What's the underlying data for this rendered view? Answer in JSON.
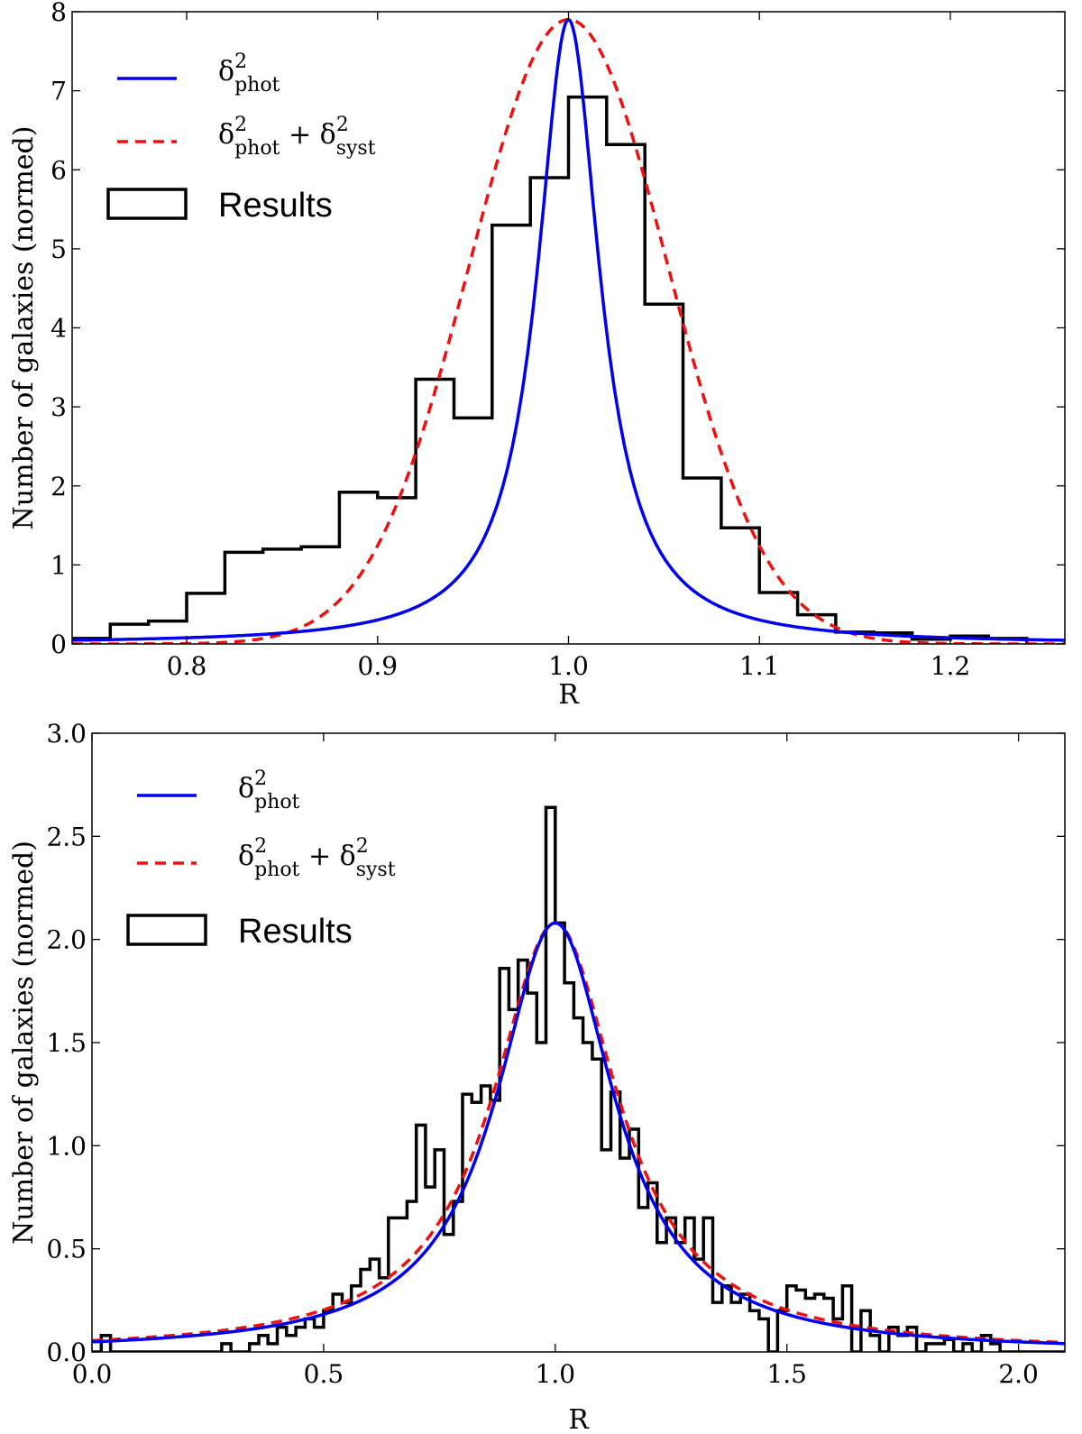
{
  "chart_data": [
    {
      "type": "line",
      "xlabel": "R",
      "ylabel": "Number of galaxies (normed)",
      "xlim": [
        0.74,
        1.26
      ],
      "ylim": [
        0,
        8
      ],
      "xticks": [
        "0.8",
        "0.9",
        "1.0",
        "1.1",
        "1.2"
      ],
      "xtick_values": [
        0.8,
        0.9,
        1.0,
        1.1,
        1.2
      ],
      "yticks": [
        "0",
        "1",
        "2",
        "3",
        "4",
        "5",
        "6",
        "7",
        "8"
      ],
      "ytick_values": [
        0,
        1,
        2,
        3,
        4,
        5,
        6,
        7,
        8
      ],
      "grid": false,
      "legend_position": "top-left",
      "series": [
        {
          "name": "δ²phot",
          "legend": {
            "sym": "δ",
            "sup": "2",
            "sub": "phot"
          },
          "kind": "curve",
          "color": "#0000ee",
          "style": "solid",
          "model": {
            "shape": "lorentzian",
            "center": 1.0,
            "gamma": 0.02,
            "peak": 7.9
          }
        },
        {
          "name": "δ²phot + δ²syst",
          "legend": {
            "sym": "δ",
            "sup": "2",
            "sub": "phot",
            "plus": "+",
            "sym2": "δ",
            "sup2": "2",
            "sub2": "syst"
          },
          "kind": "curve",
          "color": "#ee1111",
          "style": "dashed",
          "model": {
            "shape": "gaussian",
            "center": 1.0,
            "sigma": 0.052,
            "peak": 7.9
          }
        },
        {
          "name": "Results",
          "kind": "histogram",
          "color": "#000000",
          "bin_edges": [
            0.74,
            0.76,
            0.78,
            0.8,
            0.82,
            0.84,
            0.86,
            0.88,
            0.9,
            0.92,
            0.94,
            0.96,
            0.98,
            1.0,
            1.02,
            1.04,
            1.06,
            1.08,
            1.1,
            1.12,
            1.14,
            1.16,
            1.18,
            1.2,
            1.22,
            1.24
          ],
          "values": [
            0.07,
            0.25,
            0.29,
            0.64,
            1.16,
            1.2,
            1.23,
            1.92,
            1.85,
            3.35,
            2.86,
            5.3,
            5.9,
            6.92,
            6.32,
            4.3,
            2.1,
            1.47,
            0.65,
            0.37,
            0.15,
            0.14,
            0.06,
            0.1,
            0.07
          ]
        }
      ]
    },
    {
      "type": "line",
      "xlabel": "R",
      "ylabel": "Number of galaxies (normed)",
      "xlim": [
        0.0,
        2.1
      ],
      "ylim": [
        0,
        3.0
      ],
      "xticks": [
        "0.0",
        "0.5",
        "1.0",
        "1.5",
        "2.0"
      ],
      "xtick_values": [
        0.0,
        0.5,
        1.0,
        1.5,
        2.0
      ],
      "yticks": [
        "0.0",
        "0.5",
        "1.0",
        "1.5",
        "2.0",
        "2.5",
        "3.0"
      ],
      "ytick_values": [
        0.0,
        0.5,
        1.0,
        1.5,
        2.0,
        2.5,
        3.0
      ],
      "grid": false,
      "legend_position": "top-left",
      "series": [
        {
          "name": "δ²phot",
          "legend": {
            "sym": "δ",
            "sup": "2",
            "sub": "phot"
          },
          "kind": "curve",
          "color": "#0000ee",
          "style": "solid",
          "model": {
            "shape": "lorentzian",
            "center": 1.0,
            "gamma": 0.155,
            "peak": 2.08
          }
        },
        {
          "name": "δ²phot + δ²syst",
          "legend": {
            "sym": "δ",
            "sup": "2",
            "sub": "phot",
            "plus": "+",
            "sym2": "δ",
            "sup2": "2",
            "sub2": "syst"
          },
          "kind": "curve",
          "color": "#ee1111",
          "style": "dashed",
          "model": {
            "shape": "lorentzian",
            "center": 1.0,
            "gamma": 0.165,
            "peak": 2.08
          }
        },
        {
          "name": "Results",
          "kind": "histogram",
          "color": "#000000",
          "bin_edges": [
            0.0,
            0.02,
            0.04,
            0.06,
            0.08,
            0.1,
            0.12,
            0.14,
            0.16,
            0.18,
            0.2,
            0.22,
            0.24,
            0.26,
            0.28,
            0.3,
            0.32,
            0.34,
            0.36,
            0.38,
            0.4,
            0.42,
            0.44,
            0.46,
            0.48,
            0.5,
            0.52,
            0.54,
            0.56,
            0.58,
            0.6,
            0.62,
            0.64,
            0.66,
            0.68,
            0.7,
            0.72,
            0.74,
            0.76,
            0.78,
            0.8,
            0.82,
            0.84,
            0.86,
            0.88,
            0.9,
            0.92,
            0.94,
            0.96,
            0.98,
            1.0,
            1.02,
            1.04,
            1.06,
            1.08,
            1.1,
            1.12,
            1.14,
            1.16,
            1.18,
            1.2,
            1.22,
            1.24,
            1.26,
            1.28,
            1.3,
            1.32,
            1.34,
            1.36,
            1.38,
            1.4,
            1.42,
            1.44,
            1.46,
            1.48,
            1.5,
            1.52,
            1.54,
            1.56,
            1.58,
            1.6,
            1.62,
            1.64,
            1.66,
            1.68,
            1.7,
            1.72,
            1.74,
            1.76,
            1.78,
            1.8,
            1.82,
            1.84,
            1.86,
            1.88,
            1.9,
            1.92,
            1.94,
            1.96,
            1.98,
            2.0,
            2.02,
            2.04,
            2.06,
            2.08,
            2.1
          ],
          "values": [
            0.0,
            0.08,
            0.0,
            0.0,
            0.0,
            0.0,
            0.0,
            0.0,
            0.0,
            0.0,
            0.0,
            0.0,
            0.0,
            0.0,
            0.04,
            0.0,
            0.0,
            0.04,
            0.08,
            0.04,
            0.12,
            0.08,
            0.12,
            0.16,
            0.12,
            0.2,
            0.28,
            0.24,
            0.32,
            0.4,
            0.45,
            0.36,
            0.65,
            0.65,
            0.73,
            1.1,
            0.8,
            0.98,
            0.57,
            0.73,
            1.25,
            1.21,
            1.29,
            1.22,
            1.86,
            1.66,
            1.9,
            1.74,
            1.5,
            2.64,
            2.08,
            1.79,
            1.62,
            1.5,
            1.42,
            0.98,
            1.26,
            0.94,
            1.08,
            0.7,
            0.82,
            0.53,
            0.65,
            0.53,
            0.65,
            0.45,
            0.65,
            0.24,
            0.32,
            0.24,
            0.28,
            0.2,
            0.16,
            0.0,
            0.2,
            0.32,
            0.3,
            0.26,
            0.28,
            0.26,
            0.16,
            0.32,
            0.0,
            0.2,
            0.08,
            0.0,
            0.12,
            0.08,
            0.12,
            0.0,
            0.04,
            0.04,
            0.06,
            0.0,
            0.04,
            0.0,
            0.08,
            0.04,
            0.0,
            0.0,
            0.0,
            0.0,
            0.0,
            0.0,
            0.0
          ]
        }
      ]
    }
  ]
}
